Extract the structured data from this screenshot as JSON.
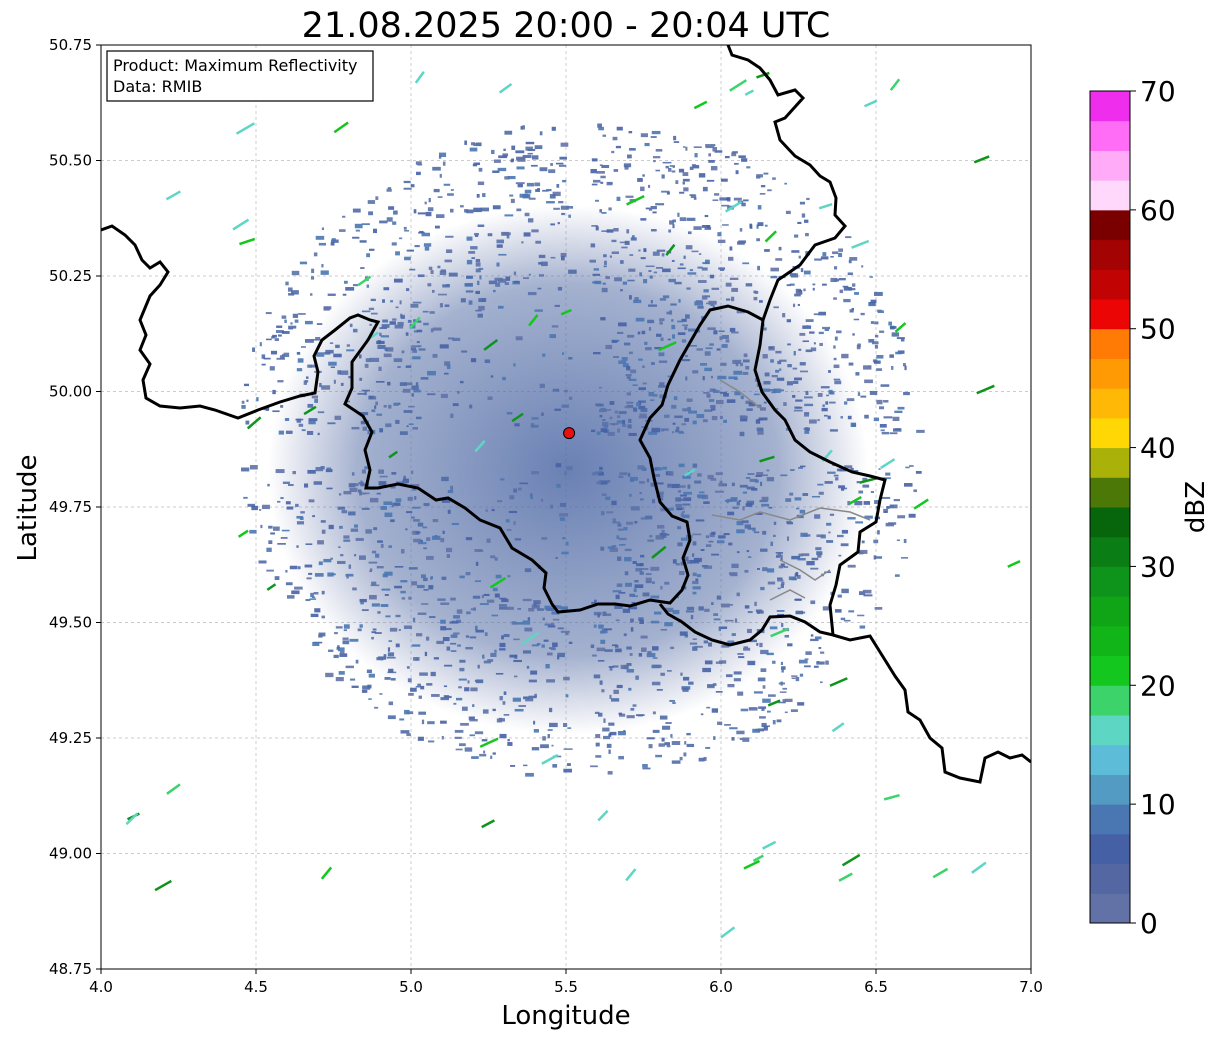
{
  "title": "21.08.2025 20:00 - 20:04 UTC",
  "info_box": {
    "line1": "Product: Maximum Reflectivity",
    "line2": "Data: RMIB"
  },
  "chart_data": {
    "type": "heatmap",
    "title": "21.08.2025 20:00 - 20:04 UTC",
    "xlabel": "Longitude",
    "ylabel": "Latitude",
    "xlim": [
      4.0,
      7.0
    ],
    "ylim": [
      48.75,
      50.75
    ],
    "xticks": [
      "4.0",
      "4.5",
      "5.0",
      "5.5",
      "6.0",
      "6.5",
      "7.0"
    ],
    "yticks": [
      "48.75",
      "49.00",
      "49.25",
      "49.50",
      "49.75",
      "50.00",
      "50.25",
      "50.50",
      "50.75"
    ],
    "grid": true,
    "radar_site": {
      "lon": 5.51,
      "lat": 49.91,
      "color": "#e81010"
    },
    "echo_field": {
      "description_levels_dbz": [
        0,
        5
      ],
      "inner_clear_radius_deg_lon": 0.46,
      "outer_radius_deg_lon": 0.95,
      "dominant_color": "#4f6aa6"
    },
    "colorbar": {
      "label": "dBZ",
      "min": 0,
      "max": 70,
      "tick_labels": [
        "0",
        "10",
        "20",
        "30",
        "40",
        "50",
        "60",
        "70"
      ],
      "colors": [
        "#6272a6",
        "#5467a3",
        "#4660a5",
        "#4a77b1",
        "#539bc2",
        "#5dbcd8",
        "#5dd6c4",
        "#3cd46a",
        "#14c71e",
        "#12b518",
        "#10a516",
        "#0e941a",
        "#0a7e14",
        "#07650c",
        "#4c7808",
        "#aab20a",
        "#ffd705",
        "#ffb805",
        "#ff9a05",
        "#ff7b05",
        "#ec0505",
        "#c20303",
        "#a30303",
        "#7a0000",
        "#ffd8fb",
        "#ffabf8",
        "#ff6cf6",
        "#ee2ded"
      ]
    }
  },
  "map_lines": {
    "border_color": "#000000",
    "secondary_color": "#888888"
  }
}
